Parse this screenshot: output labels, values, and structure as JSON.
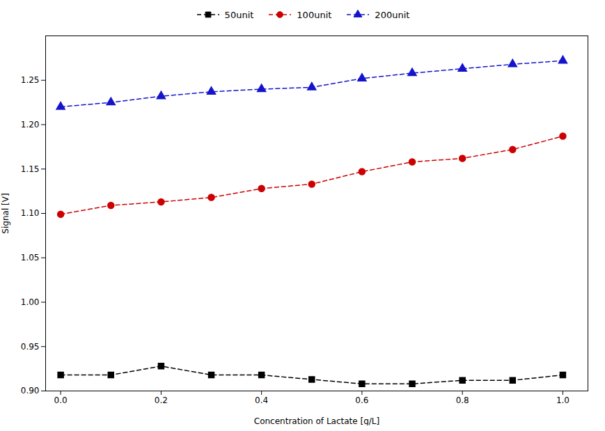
{
  "chart_data": {
    "type": "line",
    "x": [
      0.0,
      0.1,
      0.2,
      0.3,
      0.4,
      0.5,
      0.6,
      0.7,
      0.8,
      0.9,
      1.0
    ],
    "series": [
      {
        "name": "50unit",
        "color": "#000000",
        "marker": "square",
        "values": [
          0.918,
          0.918,
          0.928,
          0.918,
          0.918,
          0.913,
          0.908,
          0.908,
          0.912,
          0.912,
          0.918
        ]
      },
      {
        "name": "100unit",
        "color": "#cc0000",
        "marker": "circle",
        "values": [
          1.099,
          1.109,
          1.113,
          1.118,
          1.128,
          1.133,
          1.147,
          1.158,
          1.162,
          1.172,
          1.187
        ]
      },
      {
        "name": "200unit",
        "color": "#1414cc",
        "marker": "triangle",
        "values": [
          1.22,
          1.225,
          1.232,
          1.237,
          1.24,
          1.242,
          1.252,
          1.258,
          1.263,
          1.268,
          1.272
        ]
      }
    ],
    "line_style": "dashed",
    "xlabel": "Concentration of Lactate [g/L]",
    "ylabel": "Signal [V]",
    "xlim": [
      -0.03,
      1.05
    ],
    "ylim": [
      0.9,
      1.3
    ],
    "xticks": [
      {
        "value": 0.0,
        "label": "0.0"
      },
      0.2,
      0.4,
      0.6,
      0.8,
      {
        "value": 1.0,
        "label": "1.0"
      }
    ],
    "yticks": [
      {
        "value": 0.9,
        "label": "0.90"
      },
      0.95,
      {
        "value": 1.0,
        "label": "1.00"
      },
      1.05,
      {
        "value": 1.1,
        "label": "1.10"
      },
      1.15,
      {
        "value": 1.2,
        "label": "1.20"
      },
      1.25
    ],
    "grid": false,
    "legend": "top"
  }
}
